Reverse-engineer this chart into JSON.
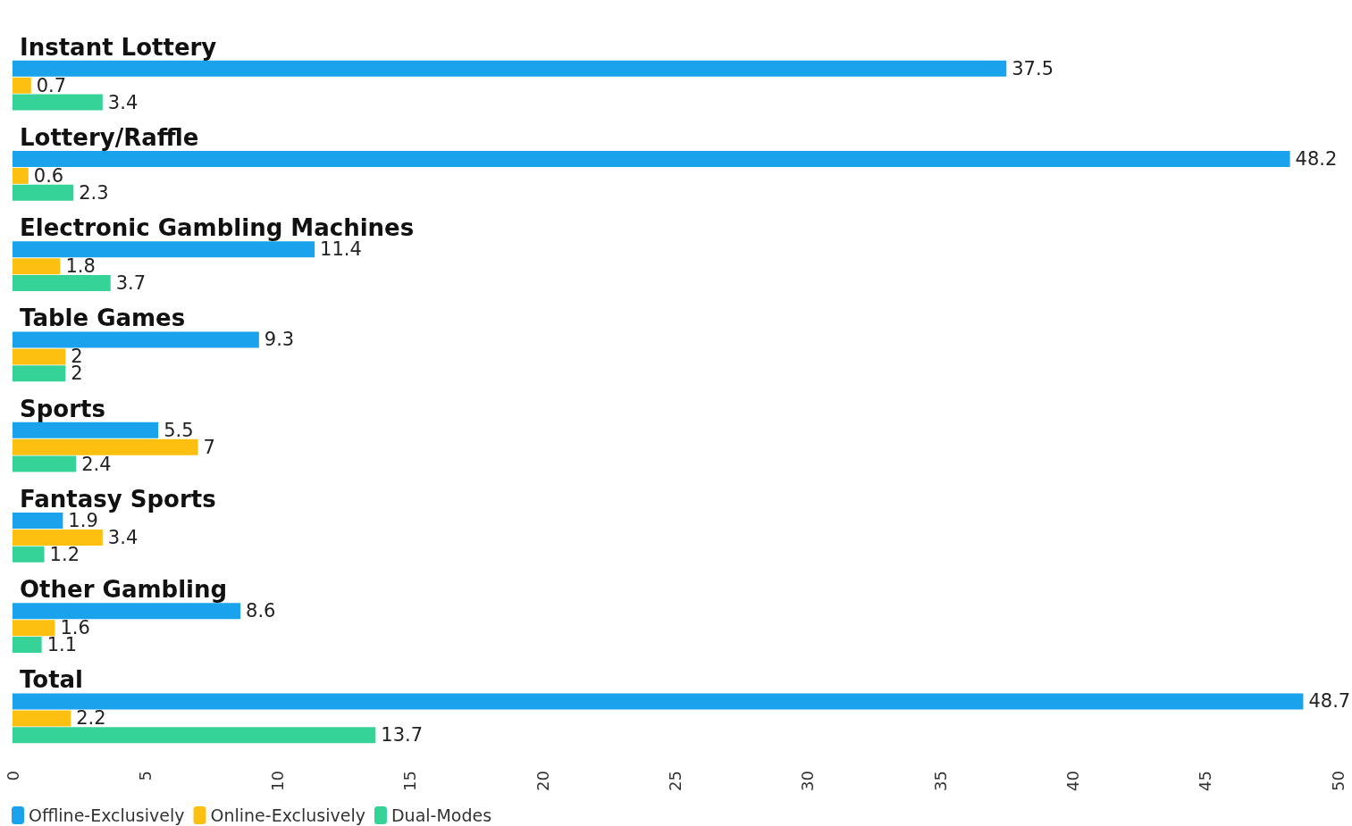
{
  "chart_data": {
    "type": "bar",
    "orientation": "horizontal",
    "categories": [
      "Instant Lottery",
      "Lottery/Raffle",
      "Electronic Gambling Machines",
      "Table Games",
      "Sports",
      "Fantasy Sports",
      "Other Gambling",
      "Total"
    ],
    "series": [
      {
        "name": "Offline-Exclusively",
        "color": "#1aa3ec",
        "values": [
          37.5,
          48.2,
          11.4,
          9.3,
          5.5,
          1.9,
          8.6,
          48.7
        ]
      },
      {
        "name": "Online-Exclusively",
        "color": "#fdc010",
        "values": [
          0.7,
          0.6,
          1.8,
          2,
          7,
          3.4,
          1.6,
          2.2
        ]
      },
      {
        "name": "Dual-Modes",
        "color": "#36d399",
        "values": [
          3.4,
          2.3,
          3.7,
          2,
          2.4,
          1.2,
          1.1,
          13.7
        ]
      }
    ],
    "xlim": [
      0,
      50
    ],
    "xticks": [
      0,
      5,
      10,
      15,
      20,
      25,
      30,
      35,
      40,
      45,
      50
    ],
    "data_labels": true,
    "legend": "bottom left"
  }
}
